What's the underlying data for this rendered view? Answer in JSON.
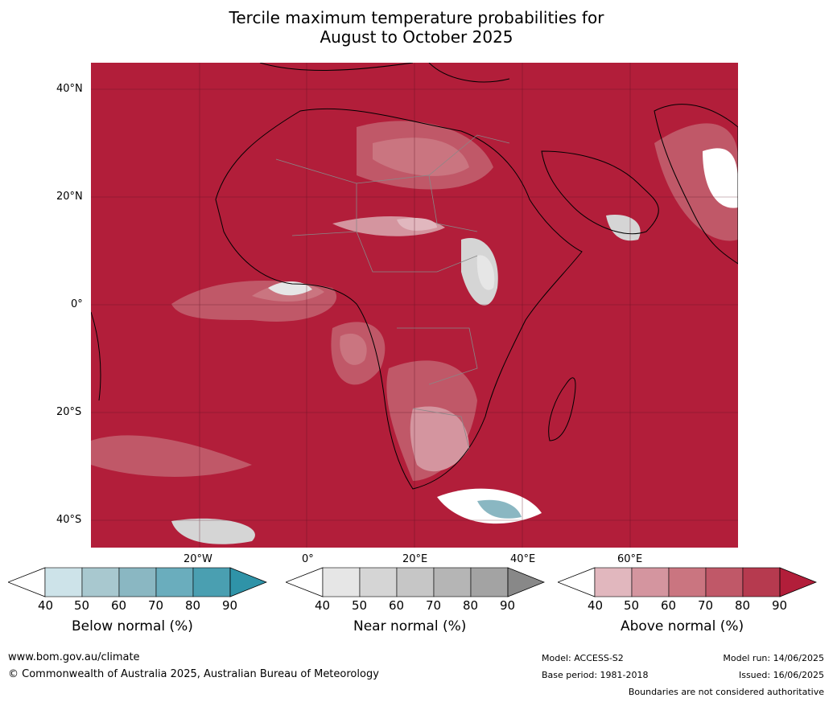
{
  "title_line1": "Tercile maximum temperature probabilities for",
  "title_line2": "August to October 2025",
  "lat_labels": [
    "40°N",
    "20°N",
    "0°",
    "20°S",
    "40°S"
  ],
  "lon_labels": [
    "20°W",
    "0°",
    "20°E",
    "40°E",
    "60°E"
  ],
  "colorbars": [
    {
      "label": "Below normal (%)",
      "ticks": [
        "40",
        "50",
        "60",
        "70",
        "80",
        "90"
      ],
      "colors": [
        "#cde3e9",
        "#a8c8cf",
        "#8ab7c2",
        "#6aadbd",
        "#4a9fb1",
        "#2f93a8"
      ]
    },
    {
      "label": "Near normal (%)",
      "ticks": [
        "40",
        "50",
        "60",
        "70",
        "80",
        "90"
      ],
      "colors": [
        "#e6e6e6",
        "#d5d5d5",
        "#c6c6c6",
        "#b5b5b5",
        "#a3a3a3",
        "#888888"
      ]
    },
    {
      "label": "Above normal (%)",
      "ticks": [
        "40",
        "50",
        "60",
        "70",
        "80",
        "90"
      ],
      "colors": [
        "#e1b7be",
        "#d4959f",
        "#ca7580",
        "#c05868",
        "#b63a4f",
        "#b21e3a"
      ]
    }
  ],
  "footer": {
    "website": "www.bom.gov.au/climate",
    "copyright": "© Commonwealth of Australia 2025, Australian Bureau of Meteorology",
    "model": "Model: ACCESS-S2",
    "base_period": "Base period: 1981-2018",
    "model_run": "Model run: 14/06/2025",
    "issued": "Issued: 16/06/2025",
    "disclaimer": "Boundaries are not considered authoritative"
  }
}
